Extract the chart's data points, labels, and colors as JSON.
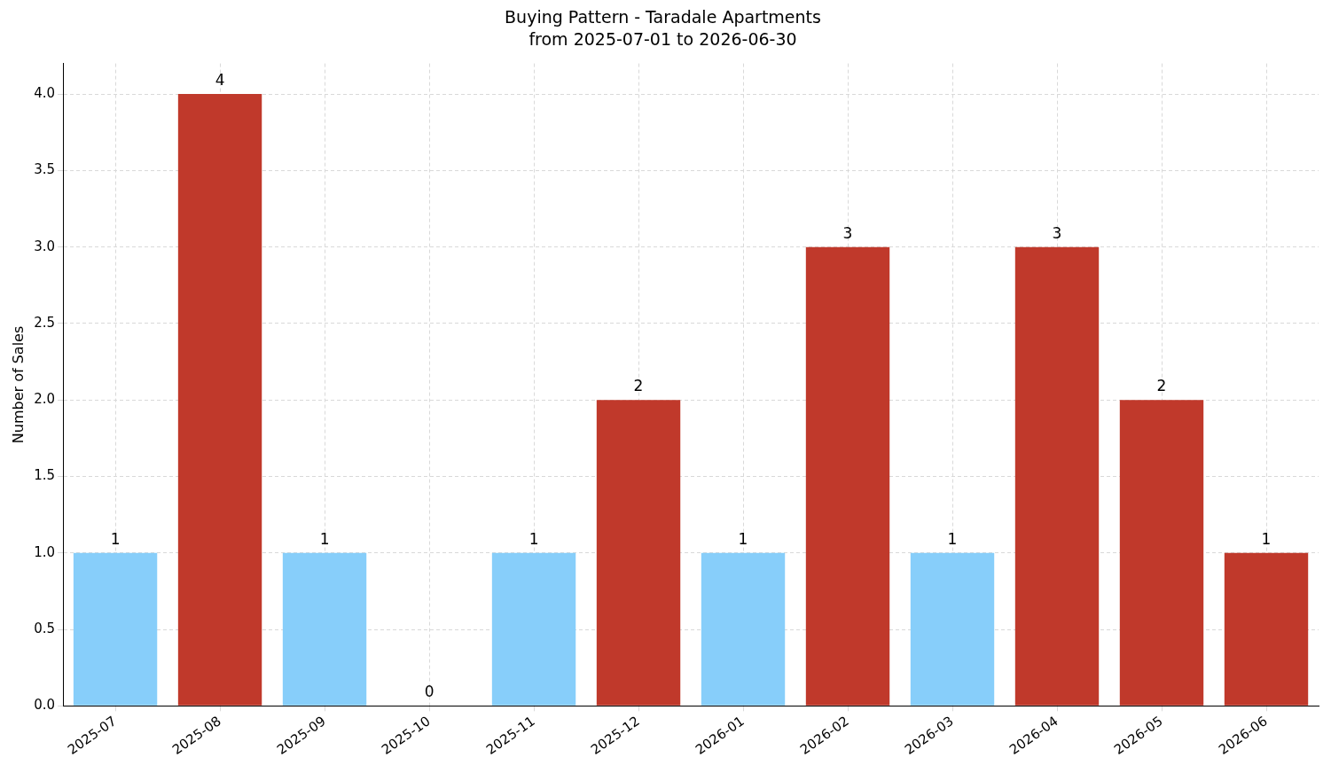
{
  "chart_data": {
    "type": "bar",
    "title": "Buying Pattern - Taradale Apartments",
    "subtitle": "from 2025-07-01 to 2026-06-30",
    "ylabel": "Number of Sales",
    "categories": [
      "2025-07",
      "2025-08",
      "2025-09",
      "2025-10",
      "2025-11",
      "2025-12",
      "2026-01",
      "2026-02",
      "2026-03",
      "2026-04",
      "2026-05",
      "2026-06"
    ],
    "values": [
      1,
      4,
      1,
      0,
      1,
      2,
      1,
      3,
      1,
      3,
      2,
      1
    ],
    "colors": [
      "#87cefa",
      "#c0392b",
      "#87cefa",
      "#87cefa",
      "#87cefa",
      "#c0392b",
      "#87cefa",
      "#c0392b",
      "#87cefa",
      "#c0392b",
      "#c0392b",
      "#c0392b"
    ],
    "ylim": [
      0,
      4.2
    ],
    "yticks": [
      {
        "value": 0,
        "label": "0.0"
      },
      {
        "value": 0.5,
        "label": "0.5"
      },
      {
        "value": 1,
        "label": "1.0"
      },
      {
        "value": 1.5,
        "label": "1.5"
      },
      {
        "value": 2,
        "label": "2.0"
      },
      {
        "value": 2.5,
        "label": "2.5"
      },
      {
        "value": 3,
        "label": "3.0"
      },
      {
        "value": 3.5,
        "label": "3.5"
      },
      {
        "value": 4,
        "label": "4.0"
      }
    ],
    "grid": true,
    "data_labels": true,
    "legend": false
  }
}
